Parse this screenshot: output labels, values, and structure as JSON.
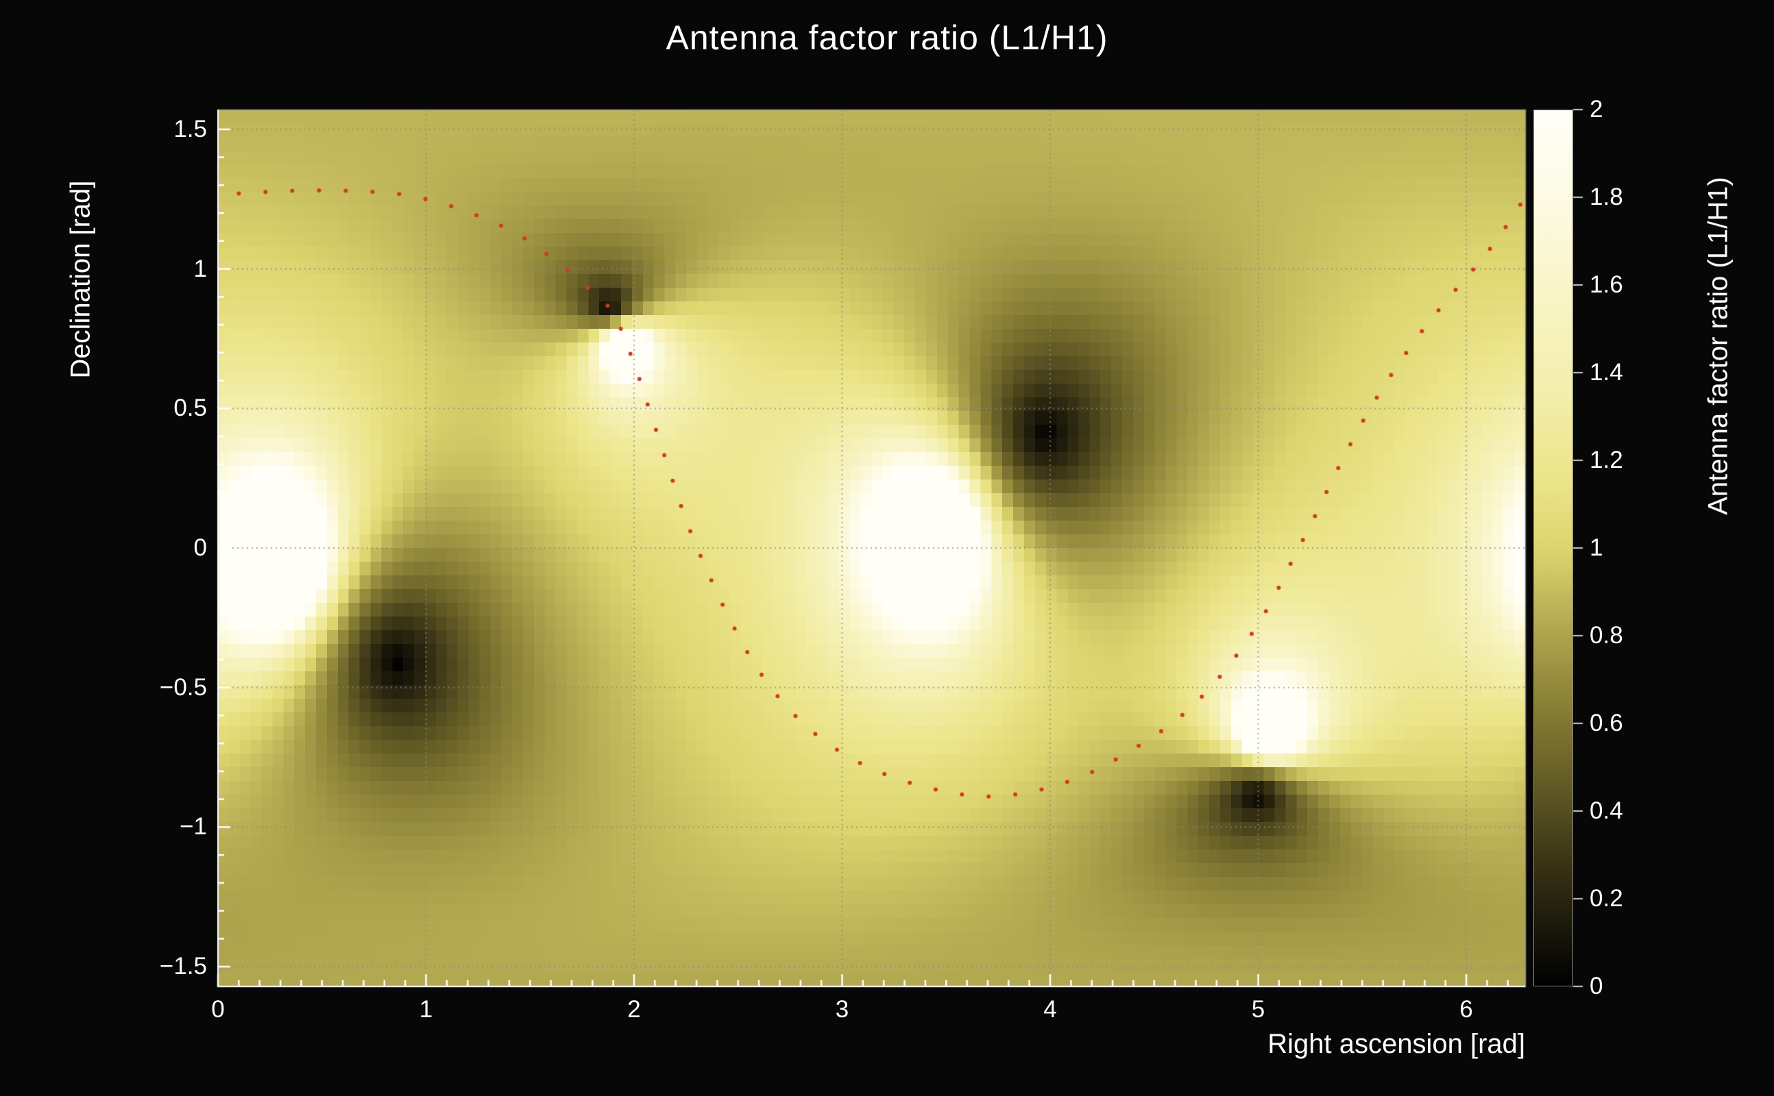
{
  "chart_data": {
    "type": "heatmap",
    "title": "Antenna factor ratio (L1/H1)",
    "xlabel": "Right ascension [rad]",
    "ylabel": "Declination [rad]",
    "zlabel": "Antenna factor ratio (L1/H1)",
    "x_range": [
      0,
      6.2832
    ],
    "y_range": [
      -1.5708,
      1.5708
    ],
    "z_range": [
      0,
      2
    ],
    "x_ticks": [
      0,
      1,
      2,
      3,
      4,
      5,
      6
    ],
    "y_ticks": [
      -1.5,
      -1,
      -0.5,
      0,
      0.5,
      1,
      1.5
    ],
    "z_ticks": [
      0,
      0.2,
      0.4,
      0.6,
      0.8,
      1,
      1.2,
      1.4,
      1.6,
      1.8,
      2
    ],
    "grid": true,
    "ratio_minima_points": [
      [
        1.88,
        0.87
      ],
      [
        3.98,
        0.41
      ],
      [
        0.86,
        -0.41
      ],
      [
        4.99,
        -0.89
      ]
    ],
    "ratio_maxima_points": [
      [
        0.3,
        -0.06
      ],
      [
        3.45,
        0.05
      ],
      [
        1.95,
        0.74
      ],
      [
        5.05,
        -0.67
      ]
    ],
    "model": {
      "base": 1.0,
      "sigma": 0.8,
      "clamp_max": 2
    },
    "track_points": [
      [
        0.1,
        1.27
      ],
      [
        0.35,
        1.28
      ],
      [
        0.6,
        1.28
      ],
      [
        0.85,
        1.27
      ],
      [
        1.05,
        1.24
      ],
      [
        1.25,
        1.19
      ],
      [
        1.45,
        1.12
      ],
      [
        1.62,
        1.03
      ],
      [
        1.78,
        0.93
      ],
      [
        1.9,
        0.84
      ],
      [
        2.0,
        0.66
      ],
      [
        2.08,
        0.48
      ],
      [
        2.16,
        0.3
      ],
      [
        2.25,
        0.1
      ],
      [
        2.35,
        -0.08
      ],
      [
        2.47,
        -0.27
      ],
      [
        2.6,
        -0.44
      ],
      [
        2.76,
        -0.59
      ],
      [
        2.95,
        -0.71
      ],
      [
        3.17,
        -0.8
      ],
      [
        3.42,
        -0.86
      ],
      [
        3.68,
        -0.89
      ],
      [
        3.93,
        -0.87
      ],
      [
        4.18,
        -0.81
      ],
      [
        4.4,
        -0.72
      ],
      [
        4.6,
        -0.62
      ],
      [
        4.77,
        -0.5
      ],
      [
        4.92,
        -0.36
      ],
      [
        5.05,
        -0.21
      ],
      [
        5.16,
        -0.05
      ],
      [
        5.27,
        0.11
      ],
      [
        5.38,
        0.28
      ],
      [
        5.5,
        0.45
      ],
      [
        5.63,
        0.61
      ],
      [
        5.77,
        0.76
      ],
      [
        5.92,
        0.9
      ],
      [
        6.07,
        1.03
      ],
      [
        6.18,
        1.14
      ],
      [
        6.26,
        1.23
      ]
    ],
    "track_style": {
      "color": "#cf3a22",
      "dot_radius": 3,
      "count": 72
    },
    "palette": [
      [
        0.0,
        "#000000"
      ],
      [
        0.25,
        "#332e13"
      ],
      [
        0.5,
        "#6b6228"
      ],
      [
        0.7,
        "#968c3d"
      ],
      [
        0.85,
        "#b9af55"
      ],
      [
        1.0,
        "#ddd56f"
      ],
      [
        1.15,
        "#ebe489"
      ],
      [
        1.35,
        "#f3eeaa"
      ],
      [
        1.6,
        "#f9f5c9"
      ],
      [
        1.8,
        "#fdfbe4"
      ],
      [
        2.0,
        "#fffef7"
      ]
    ],
    "colors": {
      "background": "#070707",
      "text": "#ffffff",
      "grid": "#8a8a8a",
      "frame": "#9a9a9a",
      "axis": "#ffffff",
      "colorbar_tick": "#cccccc"
    }
  }
}
